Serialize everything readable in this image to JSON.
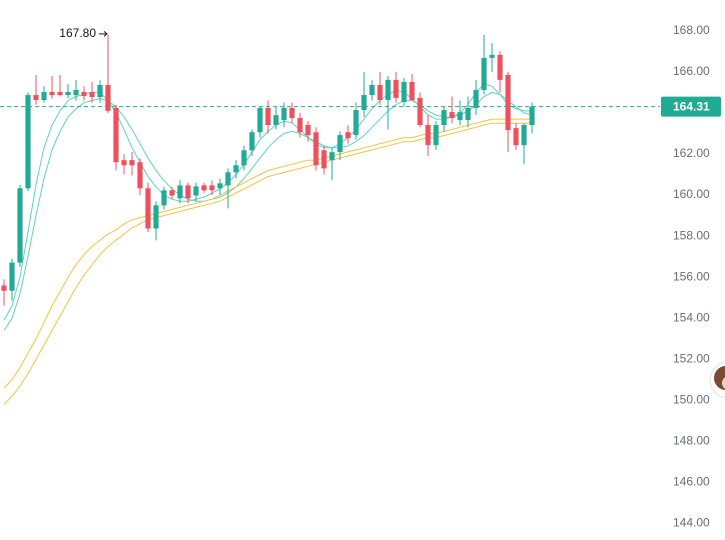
{
  "chart_data": {
    "type": "candlestick",
    "ylim": [
      143.2,
      169.5
    ],
    "yticks": [
      {
        "value": 144,
        "label": "144.00"
      },
      {
        "value": 146,
        "label": "146.00"
      },
      {
        "value": 148,
        "label": "148.00"
      },
      {
        "value": 150,
        "label": "150.00"
      },
      {
        "value": 152,
        "label": "152.00"
      },
      {
        "value": 154,
        "label": "154.00"
      },
      {
        "value": 156,
        "label": "156.00"
      },
      {
        "value": 158,
        "label": "158.00"
      },
      {
        "value": 160,
        "label": "160.00"
      },
      {
        "value": 162,
        "label": "162.00"
      },
      {
        "value": 164,
        "label": "164.00"
      },
      {
        "value": 166,
        "label": "166.00"
      },
      {
        "value": 168,
        "label": "168.00"
      }
    ],
    "up_color": "#22ab94",
    "down_color": "#f0505e",
    "open": [
      155.59,
      155.34,
      156.71,
      160.33,
      164.87,
      164.63,
      165.02,
      165.02,
      164.87,
      164.87,
      165.02,
      165.02,
      164.77,
      165.36,
      164.24,
      161.7,
      161.7,
      161.6,
      160.33,
      158.37,
      159.5,
      160.23,
      159.84,
      160.47,
      159.98,
      160.47,
      160.47,
      160.33,
      160.47,
      161.11,
      161.45,
      162.18,
      163.06,
      164.24,
      163.41,
      163.65,
      164.24,
      163.75,
      163.41,
      163.06,
      162.18,
      161.7,
      162.09,
      163.06,
      162.92,
      164.14,
      164.87,
      165.36,
      164.63,
      165.61,
      164.53,
      165.51,
      164.73,
      163.41,
      162.43,
      163.41,
      164.04,
      163.65,
      163.65,
      164.24,
      165.12,
      166.68,
      166.83,
      165.85,
      163.26,
      162.43,
      163.41
    ],
    "high": [
      155.9,
      156.91,
      160.5,
      165.0,
      165.85,
      165.3,
      165.8,
      165.85,
      165.4,
      165.6,
      165.3,
      165.5,
      165.6,
      167.8,
      164.4,
      162.0,
      162.1,
      161.8,
      160.6,
      159.7,
      160.4,
      160.4,
      160.72,
      160.6,
      160.6,
      160.6,
      160.7,
      160.8,
      161.3,
      161.7,
      162.4,
      163.2,
      164.3,
      164.6,
      164.3,
      164.5,
      164.5,
      164.0,
      163.6,
      163.3,
      162.4,
      162.3,
      163.1,
      163.4,
      164.5,
      166.0,
      165.6,
      166.0,
      165.8,
      166.0,
      165.7,
      165.9,
      165.0,
      163.9,
      163.6,
      164.3,
      164.8,
      164.6,
      164.8,
      165.6,
      167.8,
      167.4,
      167.0,
      166.0,
      163.5,
      163.5,
      164.5
    ],
    "low": [
      154.61,
      154.85,
      156.5,
      160.2,
      164.4,
      164.5,
      164.7,
      164.8,
      164.7,
      164.6,
      164.6,
      164.5,
      164.5,
      164.0,
      161.2,
      161.0,
      160.96,
      160.0,
      158.2,
      157.79,
      159.3,
      159.8,
      159.6,
      159.6,
      159.7,
      160.1,
      160.0,
      160.0,
      159.35,
      160.8,
      161.2,
      161.9,
      162.8,
      163.0,
      163.2,
      163.3,
      163.5,
      162.8,
      162.6,
      161.2,
      161.0,
      160.72,
      161.7,
      162.5,
      162.7,
      163.8,
      164.6,
      164.4,
      163.2,
      164.5,
      164.3,
      164.6,
      163.3,
      161.9,
      162.2,
      163.1,
      163.5,
      163.4,
      163.3,
      163.9,
      164.9,
      166.0,
      165.0,
      162.1,
      162.2,
      161.5,
      163.0
    ],
    "close": [
      155.34,
      156.71,
      160.33,
      164.87,
      164.63,
      165.02,
      164.87,
      164.87,
      165.02,
      165.12,
      164.82,
      164.77,
      165.36,
      164.1,
      161.6,
      161.45,
      161.45,
      160.33,
      158.37,
      159.5,
      160.23,
      159.98,
      160.47,
      159.84,
      160.42,
      160.23,
      160.23,
      160.57,
      161.11,
      161.45,
      162.18,
      163.06,
      164.24,
      163.41,
      163.89,
      164.24,
      163.75,
      163.06,
      162.92,
      161.45,
      161.3,
      162.09,
      162.92,
      162.77,
      164.14,
      164.87,
      165.36,
      164.63,
      165.61,
      164.73,
      165.51,
      164.63,
      163.41,
      162.43,
      163.41,
      164.14,
      163.75,
      164.04,
      164.24,
      165.12,
      166.68,
      166.83,
      165.61,
      163.16,
      162.43,
      163.41,
      164.31
    ],
    "lines": [
      {
        "color": "#5fd3bc",
        "values": [
          153.9,
          154.6,
          156.0,
          158.2,
          160.5,
          162.3,
          163.4,
          164.1,
          164.6,
          164.8,
          164.9,
          165.0,
          165.0,
          164.6,
          164.0,
          163.2,
          162.3,
          161.6,
          160.9,
          160.4,
          160.0,
          159.8,
          159.7,
          159.7,
          159.8,
          159.9,
          160.1,
          160.3,
          160.6,
          161.0,
          161.5,
          162.1,
          162.7,
          163.1,
          163.4,
          163.6,
          163.5,
          163.2,
          162.8,
          162.5,
          162.3,
          162.3,
          162.5,
          162.8,
          163.2,
          163.7,
          164.2,
          164.6,
          164.9,
          165.1,
          165.0,
          164.7,
          164.3,
          163.9,
          163.7,
          163.7,
          163.8,
          164.0,
          164.4,
          165.0,
          165.4,
          165.3,
          164.9,
          164.4,
          164.2,
          164.1,
          164.1
        ]
      },
      {
        "color": "#5fd3bc",
        "values": [
          153.4,
          154.0,
          155.2,
          157.0,
          159.0,
          160.8,
          162.2,
          163.1,
          163.8,
          164.2,
          164.5,
          164.6,
          164.7,
          164.6,
          164.3,
          163.8,
          163.2,
          162.5,
          161.8,
          161.2,
          160.7,
          160.3,
          160.0,
          159.8,
          159.7,
          159.7,
          159.8,
          159.9,
          160.1,
          160.4,
          160.8,
          161.3,
          161.8,
          162.3,
          162.7,
          163.0,
          163.1,
          163.0,
          162.8,
          162.6,
          162.4,
          162.3,
          162.3,
          162.4,
          162.6,
          162.9,
          163.3,
          163.7,
          164.1,
          164.4,
          164.6,
          164.6,
          164.4,
          164.1,
          163.9,
          163.8,
          163.8,
          163.9,
          164.1,
          164.4,
          164.8,
          165.0,
          164.9,
          164.6,
          164.3,
          164.0,
          163.9
        ]
      },
      {
        "color": "#f5c242",
        "values": [
          150.6,
          151.0,
          151.6,
          152.3,
          153.0,
          153.8,
          154.6,
          155.3,
          156.0,
          156.6,
          157.1,
          157.5,
          157.8,
          158.1,
          158.3,
          158.6,
          158.8,
          158.9,
          159.0,
          159.1,
          159.2,
          159.3,
          159.4,
          159.5,
          159.6,
          159.7,
          159.8,
          160.0,
          160.2,
          160.4,
          160.6,
          160.8,
          161.0,
          161.2,
          161.3,
          161.4,
          161.5,
          161.6,
          161.7,
          161.7,
          161.8,
          161.9,
          162.0,
          162.1,
          162.2,
          162.3,
          162.4,
          162.5,
          162.6,
          162.7,
          162.8,
          162.8,
          162.9,
          163.0,
          163.0,
          163.1,
          163.2,
          163.3,
          163.4,
          163.5,
          163.6,
          163.7,
          163.7,
          163.7,
          163.7,
          163.7,
          163.7
        ]
      },
      {
        "color": "#f5c242",
        "values": [
          149.8,
          150.2,
          150.7,
          151.3,
          152.0,
          152.7,
          153.4,
          154.1,
          154.8,
          155.5,
          156.1,
          156.6,
          157.1,
          157.5,
          157.8,
          158.1,
          158.4,
          158.6,
          158.8,
          158.9,
          159.0,
          159.1,
          159.2,
          159.3,
          159.4,
          159.5,
          159.6,
          159.7,
          159.9,
          160.1,
          160.3,
          160.5,
          160.7,
          160.9,
          161.0,
          161.1,
          161.2,
          161.3,
          161.4,
          161.5,
          161.6,
          161.7,
          161.8,
          161.9,
          162.0,
          162.1,
          162.2,
          162.3,
          162.4,
          162.5,
          162.6,
          162.6,
          162.7,
          162.8,
          162.8,
          162.9,
          163.0,
          163.1,
          163.2,
          163.3,
          163.4,
          163.5,
          163.5,
          163.5,
          163.5,
          163.5,
          163.5
        ]
      }
    ],
    "last_price": 164.31,
    "last_price_color": "#22ab94",
    "max_annotation": {
      "value": 167.8,
      "label": "167.80"
    }
  }
}
